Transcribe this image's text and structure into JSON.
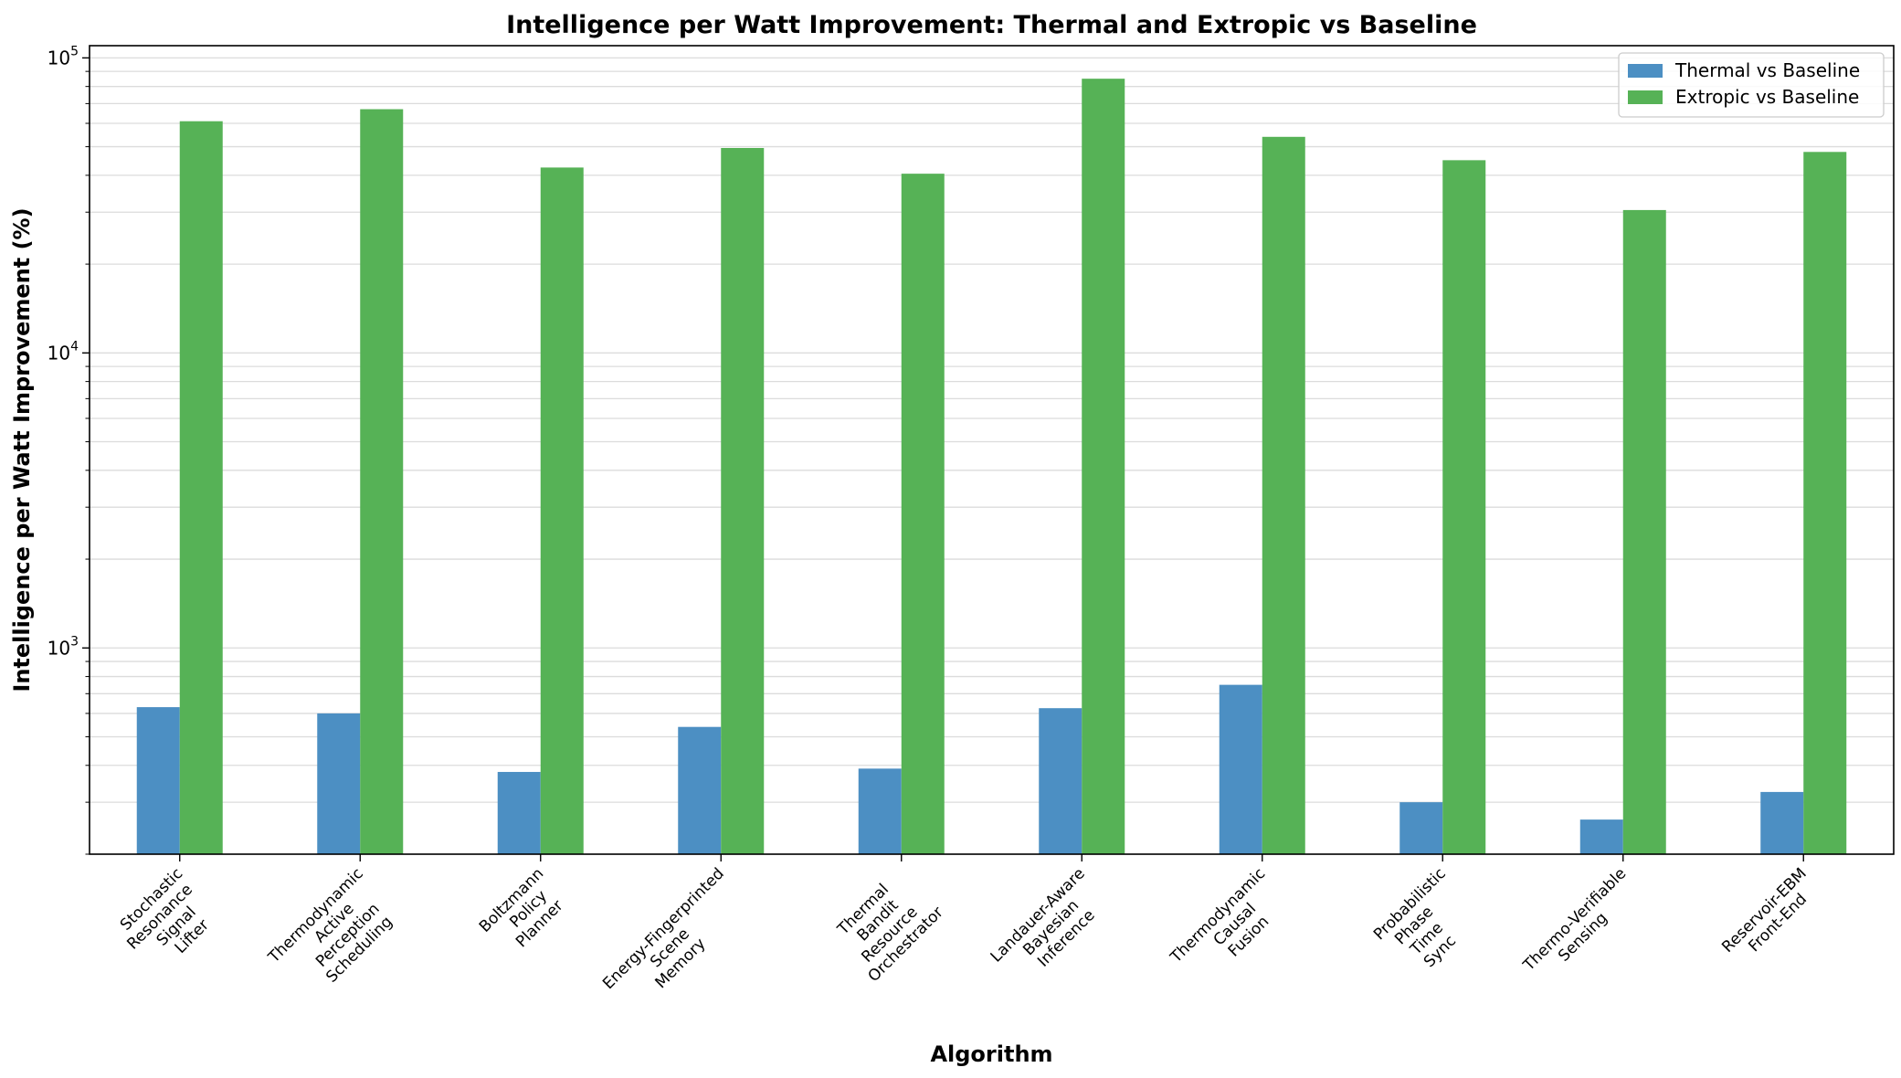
{
  "chart_data": {
    "type": "bar",
    "title": "Intelligence per Watt Improvement: Thermal and Extropic vs Baseline",
    "xlabel": "Algorithm",
    "ylabel": "Intelligence per Watt Improvement (%)",
    "yscale": "log",
    "ylim": [
      200,
      110000
    ],
    "yticks": [
      {
        "base": "10",
        "exp": "3"
      },
      {
        "base": "10",
        "exp": "4"
      },
      {
        "base": "10",
        "exp": "5"
      }
    ],
    "grid": "y",
    "legend_position": "top-right",
    "categories": [
      [
        "Stochastic",
        "Resonance",
        "Signal",
        "Lifter"
      ],
      [
        "Thermodynamic",
        "Active",
        "Perception",
        "Scheduling"
      ],
      [
        "Boltzmann",
        "Policy",
        "Planner"
      ],
      [
        "Energy-Fingerprinted",
        "Scene",
        "Memory"
      ],
      [
        "Thermal",
        "Bandit",
        "Resource",
        "Orchestrator"
      ],
      [
        "Landauer-Aware",
        "Bayesian",
        "Inference"
      ],
      [
        "Thermodynamic",
        "Causal",
        "Fusion"
      ],
      [
        "Probabilistic",
        "Phase",
        "Time",
        "Sync"
      ],
      [
        "Thermo-Verifiable",
        "Sensing"
      ],
      [
        "Reservoir-EBM",
        "Front-End"
      ]
    ],
    "series": [
      {
        "name": "Thermal vs Baseline",
        "color": "#4c8fc3",
        "values": [
          630,
          600,
          380,
          540,
          390,
          625,
          750,
          300,
          262,
          325
        ]
      },
      {
        "name": "Extropic vs Baseline",
        "color": "#56b256",
        "values": [
          61000,
          67000,
          42500,
          49500,
          40500,
          85000,
          54000,
          45000,
          30500,
          48000
        ]
      }
    ]
  }
}
